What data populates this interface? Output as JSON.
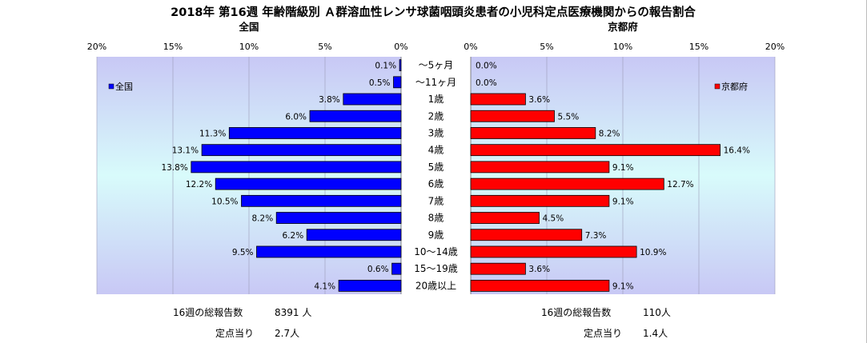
{
  "chart_data": {
    "type": "bar",
    "title": "2018年 第16週 年齢階級別 Ａ群溶血性レンサ球菌咽頭炎患者の小児科定点医療機関からの報告割合",
    "categories": [
      "～5ヶ月",
      "～11ヶ月",
      "1歳",
      "2歳",
      "3歳",
      "4歳",
      "5歳",
      "6歳",
      "7歳",
      "8歳",
      "9歳",
      "10～14歳",
      "15～19歳",
      "20歳以上"
    ],
    "x_ticks": [
      "20%",
      "15%",
      "10%",
      "5%",
      "0%"
    ],
    "x_ticks_right": [
      "0%",
      "5%",
      "10%",
      "15%",
      "20%"
    ],
    "xlim": [
      0,
      20
    ],
    "grid": true,
    "panels": [
      {
        "side": "left",
        "title": "全国",
        "legend": "全国",
        "legend_position": "top-left",
        "color": "#0000ff",
        "labels": [
          "0.1%",
          "0.5%",
          "3.8%",
          "6.0%",
          "11.3%",
          "13.1%",
          "13.8%",
          "12.2%",
          "10.5%",
          "8.2%",
          "6.2%",
          "9.5%",
          "0.6%",
          "4.1%"
        ],
        "values": [
          0.1,
          0.5,
          3.8,
          6.0,
          11.3,
          13.1,
          13.8,
          12.2,
          10.5,
          8.2,
          6.2,
          9.5,
          0.6,
          4.1
        ]
      },
      {
        "side": "right",
        "title": "京都府",
        "legend": "京都府",
        "legend_position": "top-right",
        "color": "#ff0000",
        "labels": [
          "0.0%",
          "0.0%",
          "3.6%",
          "5.5%",
          "8.2%",
          "16.4%",
          "9.1%",
          "12.7%",
          "9.1%",
          "4.5%",
          "7.3%",
          "10.9%",
          "3.6%",
          "9.1%"
        ],
        "values": [
          0.0,
          0.0,
          3.6,
          5.5,
          8.2,
          16.4,
          9.1,
          12.7,
          9.1,
          4.5,
          7.3,
          10.9,
          3.6,
          9.1
        ]
      }
    ]
  },
  "footer": {
    "left_total_label": "16週の総報告数",
    "left_total_value": "8391 人",
    "left_per_label": "定点当り",
    "left_per_value": "2.7人",
    "right_total_label": "16週の総報告数",
    "right_total_value": "110人",
    "right_per_label": "定点当り",
    "right_per_value": "1.4人"
  }
}
